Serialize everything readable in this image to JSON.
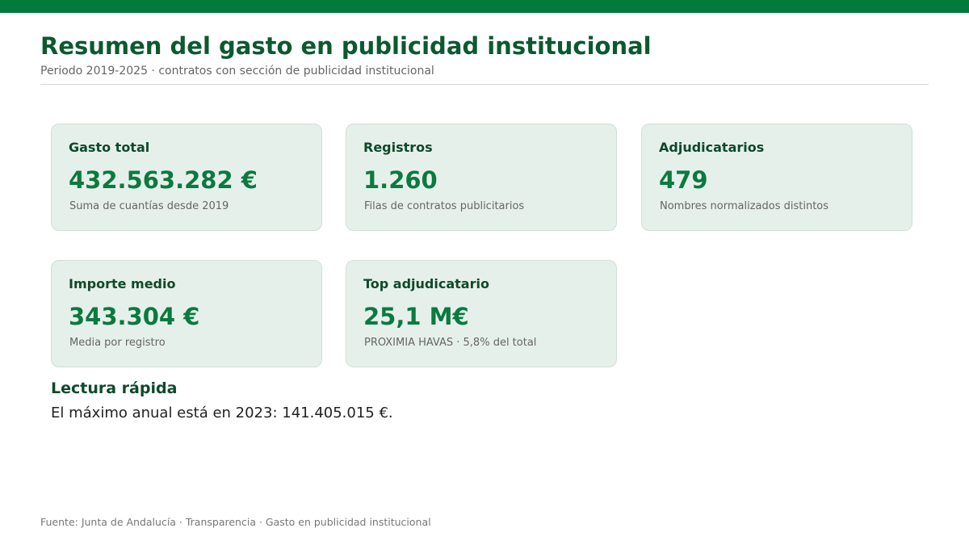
{
  "header": {
    "title": "Resumen del gasto en publicidad institucional",
    "subtitle": "Periodo 2019-2025 · contratos con sección de publicidad institucional"
  },
  "cards": [
    {
      "label": "Gasto total",
      "value": "432.563.282 €",
      "note": "Suma de cuantías desde 2019"
    },
    {
      "label": "Registros",
      "value": "1.260",
      "note": "Filas de contratos publicitarios"
    },
    {
      "label": "Adjudicatarios",
      "value": "479",
      "note": "Nombres normalizados distintos"
    },
    {
      "label": "Importe medio",
      "value": "343.304 €",
      "note": "Media por registro"
    },
    {
      "label": "Top adjudicatario",
      "value": "25,1 M€",
      "note": "PROXIMIA HAVAS · 5,8% del total"
    }
  ],
  "insight": {
    "heading": "Lectura rápida",
    "text": "El máximo anual está en 2023: 141.405.015 €."
  },
  "footer": "Fuente: Junta de Andalucía · Transparencia · Gasto en publicidad institucional"
}
